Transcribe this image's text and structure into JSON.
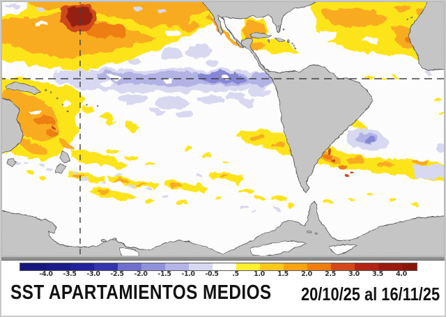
{
  "title": {
    "main": "SST APARTAMIENTOS MEDIOS",
    "period": "20/10/25 al 16/11/25"
  },
  "colorbar": {
    "tick_labels": [
      "-4.0",
      "-3.5",
      "-3.0",
      "-2.5",
      "-2.0",
      "-1.5",
      "-1.0",
      "-0.5",
      ".5",
      "1.0",
      "1.5",
      "2.0",
      "2.5",
      "3.0",
      "3.5",
      "4.0"
    ],
    "segments": [
      {
        "color": "#17177f",
        "width": 38
      },
      {
        "color": "#1b1b8a",
        "width": 34
      },
      {
        "color": "#22229b",
        "width": 34
      },
      {
        "color": "#3434af",
        "width": 34
      },
      {
        "color": "#6f6fd0",
        "width": 34
      },
      {
        "color": "#9191db",
        "width": 34
      },
      {
        "color": "#b4b4e7",
        "width": 34
      },
      {
        "color": "#d8d8f3",
        "width": 34
      },
      {
        "color": "#ffffff",
        "width": 34
      },
      {
        "color": "#ffef2e",
        "width": 34
      },
      {
        "color": "#fdc71c",
        "width": 34
      },
      {
        "color": "#f9a312",
        "width": 34
      },
      {
        "color": "#ef7d0e",
        "width": 34
      },
      {
        "color": "#d4491c",
        "width": 34
      },
      {
        "color": "#b32414",
        "width": 34
      },
      {
        "color": "#9a1a0e",
        "width": 34
      },
      {
        "color": "#8a1508",
        "width": 21
      }
    ]
  },
  "palette": {
    "ocean_white": "#ffffff",
    "land_gray": "#c6c6c6",
    "coastline": "#4f4f4f",
    "grid_dash": "#3d3d3d",
    "frame_gray": "#8f8f8f",
    "border_light": "#c9c9c9",
    "anom_yellow": "#ffe619",
    "anom_orange": "#fbab1e",
    "anom_deep_orange": "#ef7d0e",
    "anom_red": "#cf4416",
    "anom_dark_red": "#941d0c",
    "anom_pale_blue": "#d9d9f3",
    "anom_periwinkle": "#b2b2e6",
    "anom_blue": "#8585d8",
    "title_color": "#111111",
    "tick_color": "#333333"
  }
}
